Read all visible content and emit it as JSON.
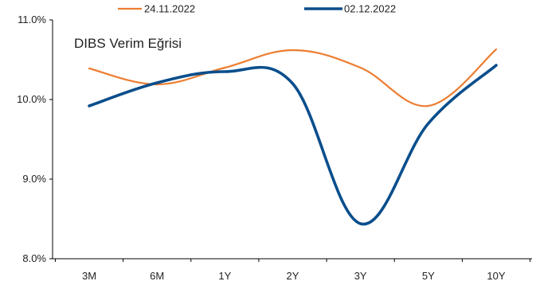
{
  "chart_data": {
    "type": "line",
    "title": "DIBS Verim Eğrisi",
    "xlabel": "",
    "ylabel": "",
    "categories": [
      "3M",
      "6M",
      "1Y",
      "2Y",
      "3Y",
      "5Y",
      "10Y"
    ],
    "ylim": [
      8.0,
      11.0
    ],
    "y_ticks": [
      8.0,
      9.0,
      10.0,
      11.0
    ],
    "y_tick_labels": [
      "8.0%",
      "9.0%",
      "10.0%",
      "11.0%"
    ],
    "grid": false,
    "legend_position": "top",
    "series": [
      {
        "name": "24.11.2022",
        "color": "#ED7D31",
        "values": [
          10.39,
          10.19,
          10.4,
          10.62,
          10.4,
          9.92,
          10.63
        ]
      },
      {
        "name": "02.12.2022",
        "color": "#0A4E8C",
        "values": [
          9.92,
          10.21,
          10.35,
          10.2,
          8.44,
          9.7,
          10.43
        ]
      }
    ]
  }
}
